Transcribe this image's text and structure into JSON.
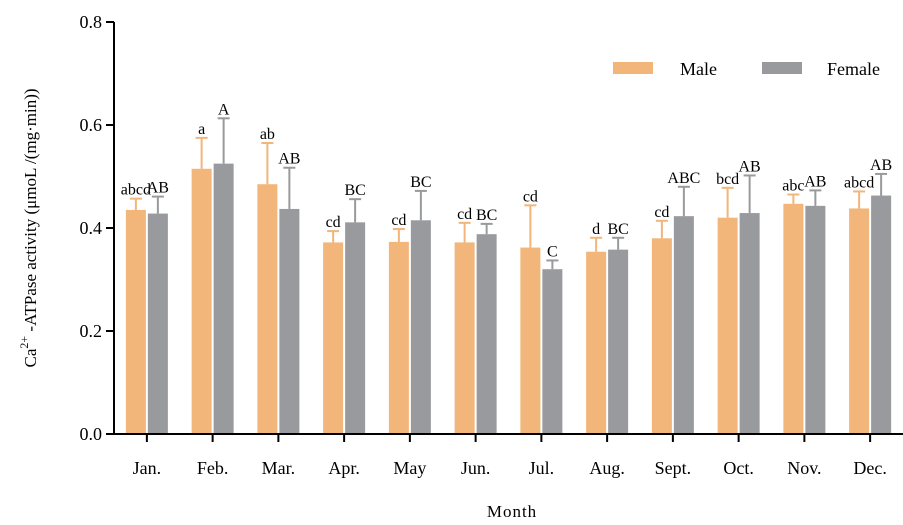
{
  "chart_data": {
    "type": "bar",
    "title": "",
    "xlabel": "Month",
    "ylabel_parts": {
      "prefix": "Ca",
      "superscript": "2+",
      "suffix": " -ATPase activity (μmoL /(mg·min))"
    },
    "ylim": [
      0.0,
      0.8
    ],
    "yticks": [
      "0.0",
      "0.2",
      "0.4",
      "0.6",
      "0.8"
    ],
    "ytick_values": [
      0.0,
      0.2,
      0.4,
      0.6,
      0.8
    ],
    "grid": false,
    "legend_position": "top-right",
    "categories": [
      "Jan.",
      "Feb.",
      "Mar.",
      "Apr.",
      "May",
      "Jun.",
      "Jul.",
      "Aug.",
      "Sept.",
      "Oct.",
      "Nov.",
      "Dec."
    ],
    "series": [
      {
        "name": "Male",
        "color": "#F2B57A",
        "values": [
          0.435,
          0.515,
          0.485,
          0.372,
          0.373,
          0.372,
          0.362,
          0.354,
          0.38,
          0.42,
          0.447,
          0.438
        ],
        "errors": [
          0.022,
          0.06,
          0.08,
          0.022,
          0.025,
          0.038,
          0.082,
          0.027,
          0.034,
          0.058,
          0.018,
          0.033
        ],
        "labels": [
          "abcd",
          "a",
          "ab",
          "cd",
          "cd",
          "cd",
          "cd",
          "d",
          "cd",
          "bcd",
          "abc",
          "abcd"
        ]
      },
      {
        "name": "Female",
        "color": "#999A9D",
        "values": [
          0.428,
          0.525,
          0.437,
          0.411,
          0.415,
          0.388,
          0.32,
          0.358,
          0.423,
          0.429,
          0.443,
          0.463
        ],
        "errors": [
          0.033,
          0.088,
          0.08,
          0.045,
          0.057,
          0.02,
          0.017,
          0.023,
          0.057,
          0.073,
          0.03,
          0.042
        ],
        "labels": [
          "AB",
          "A",
          "AB",
          "BC",
          "BC",
          "BC",
          "C",
          "BC",
          "ABC",
          "AB",
          "AB",
          "AB"
        ]
      }
    ]
  }
}
